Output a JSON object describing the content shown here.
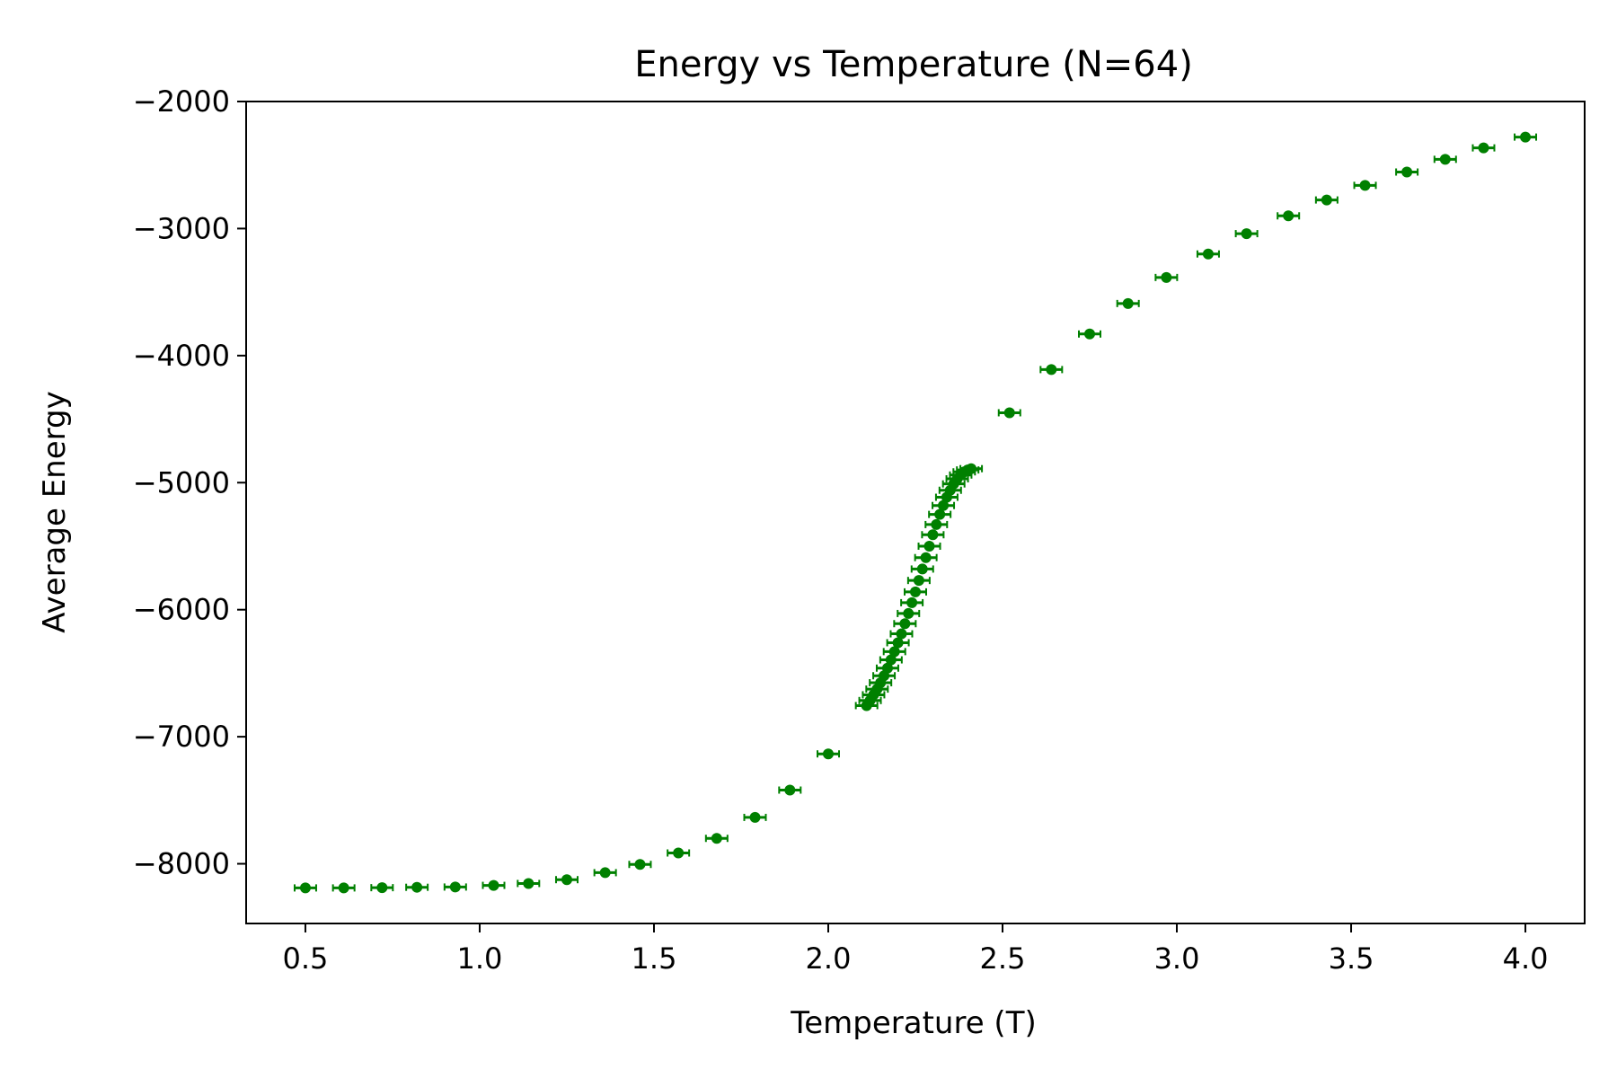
{
  "chart_data": {
    "type": "scatter",
    "title": "Energy vs Temperature (N=64)",
    "xlabel": "Temperature (T)",
    "ylabel": "Average Energy",
    "xlim": [
      0.33,
      4.17
    ],
    "ylim": [
      -8470,
      -2000
    ],
    "x_ticks": [
      0.5,
      1.0,
      1.5,
      2.0,
      2.5,
      3.0,
      3.5,
      4.0
    ],
    "x_tick_labels": [
      "0.5",
      "1.0",
      "1.5",
      "2.0",
      "2.5",
      "3.0",
      "3.5",
      "4.0"
    ],
    "y_ticks": [
      -2000,
      -3000,
      -4000,
      -5000,
      -6000,
      -7000,
      -8000
    ],
    "y_tick_labels": [
      "−2000",
      "−3000",
      "−4000",
      "−5000",
      "−6000",
      "−7000",
      "−8000"
    ],
    "grid": false,
    "marker_color": "#008000",
    "series": [
      {
        "x": [
          0.5,
          0.61,
          0.72,
          0.82,
          0.93,
          1.04,
          1.14,
          1.25,
          1.36,
          1.46,
          1.57,
          1.68,
          1.79,
          1.89,
          2.0,
          2.11,
          2.12,
          2.13,
          2.14,
          2.15,
          2.16,
          2.17,
          2.18,
          2.19,
          2.2,
          2.21,
          2.22,
          2.23,
          2.24,
          2.25,
          2.26,
          2.27,
          2.28,
          2.29,
          2.3,
          2.31,
          2.32,
          2.33,
          2.34,
          2.35,
          2.36,
          2.37,
          2.38,
          2.39,
          2.4,
          2.41,
          2.52,
          2.64,
          2.75,
          2.86,
          2.97,
          3.09,
          3.2,
          3.32,
          3.43,
          3.54,
          3.66,
          3.77,
          3.88,
          4.0
        ],
        "y": [
          -8190,
          -8190,
          -8188,
          -8185,
          -8183,
          -8170,
          -8155,
          -8125,
          -8070,
          -8005,
          -7915,
          -7800,
          -7635,
          -7420,
          -7135,
          -6755,
          -6715,
          -6670,
          -6625,
          -6575,
          -6520,
          -6460,
          -6395,
          -6330,
          -6260,
          -6190,
          -6110,
          -6030,
          -5945,
          -5860,
          -5770,
          -5680,
          -5590,
          -5500,
          -5410,
          -5330,
          -5250,
          -5180,
          -5115,
          -5060,
          -5010,
          -4970,
          -4940,
          -4915,
          -4900,
          -4890,
          -4450,
          -4110,
          -3830,
          -3590,
          -3385,
          -3200,
          -3040,
          -2900,
          -2775,
          -2660,
          -2555,
          -2455,
          -2365,
          -2280
        ]
      }
    ]
  }
}
